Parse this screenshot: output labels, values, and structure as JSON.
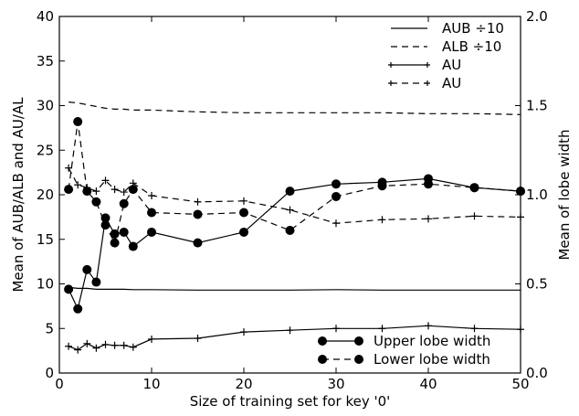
{
  "chart_data": {
    "type": "line",
    "xlabel": "Size of training set for key '0'",
    "ylabel": "Mean of AUB/ALB and AU/AL",
    "ylabel_right": "Mean of lobe width",
    "xlim": [
      0,
      50
    ],
    "ylim": [
      0,
      40
    ],
    "ylim_right": [
      0,
      2.0
    ],
    "x_ticks": [
      "0",
      "10",
      "20",
      "30",
      "40",
      "50"
    ],
    "y_ticks": [
      "0",
      "5",
      "10",
      "15",
      "20",
      "25",
      "30",
      "35",
      "40"
    ],
    "y_ticks_right": [
      "0.0",
      "0.5",
      "1.0",
      "1.5",
      "2.0"
    ],
    "grid": false,
    "legend_top": {
      "placement": "top-right",
      "entries": [
        "AUB ÷10",
        "ALB ÷10",
        "AU",
        "AU"
      ]
    },
    "legend_bottom": {
      "placement": "bottom-right",
      "entries": [
        "Upper lobe width",
        "Lower lobe width"
      ]
    },
    "series": [
      {
        "style": "solid",
        "axis": "left",
        "x": [
          1,
          2,
          3,
          4,
          5,
          6,
          7,
          8,
          10,
          15,
          20,
          25,
          30,
          35,
          40,
          45,
          50
        ],
        "values": [
          9.6,
          9.5,
          9.5,
          9.4,
          9.4,
          9.4,
          9.4,
          9.35,
          9.35,
          9.3,
          9.3,
          9.3,
          9.35,
          9.3,
          9.3,
          9.3,
          9.3
        ]
      },
      {
        "style": "dashed",
        "axis": "left",
        "x": [
          1,
          2,
          3,
          4,
          5,
          6,
          7,
          8,
          10,
          15,
          20,
          25,
          30,
          35,
          40,
          45,
          50
        ],
        "values": [
          30.4,
          30.3,
          30.1,
          29.9,
          29.7,
          29.6,
          29.6,
          29.5,
          29.5,
          29.3,
          29.2,
          29.2,
          29.2,
          29.2,
          29.1,
          29.1,
          29.0
        ]
      },
      {
        "style": "solid-plus",
        "axis": "left",
        "x": [
          1,
          2,
          3,
          4,
          5,
          6,
          7,
          8,
          10,
          15,
          20,
          25,
          30,
          35,
          40,
          45,
          50
        ],
        "values": [
          3.0,
          2.6,
          3.3,
          2.8,
          3.2,
          3.1,
          3.1,
          2.9,
          3.8,
          3.9,
          4.6,
          4.8,
          5.0,
          5.0,
          5.3,
          5.0,
          4.9
        ]
      },
      {
        "style": "dashed-plus",
        "axis": "left",
        "x": [
          1,
          2,
          3,
          4,
          5,
          6,
          7,
          8,
          10,
          15,
          20,
          25,
          30,
          35,
          40,
          45,
          50
        ],
        "values": [
          23.0,
          21.1,
          20.8,
          20.4,
          21.6,
          20.6,
          20.3,
          21.3,
          19.9,
          19.2,
          19.3,
          18.3,
          16.8,
          17.2,
          17.3,
          17.6,
          17.5
        ]
      },
      {
        "name": "Upper lobe width",
        "style": "solid-circle",
        "axis": "right",
        "x": [
          1,
          2,
          3,
          4,
          5,
          6,
          7,
          8,
          10,
          15,
          20,
          25,
          30,
          35,
          40,
          45,
          50
        ],
        "values": [
          0.47,
          0.36,
          0.58,
          0.51,
          0.87,
          0.78,
          0.79,
          0.71,
          0.79,
          0.73,
          0.79,
          1.02,
          1.06,
          1.07,
          1.09,
          1.04,
          1.02
        ]
      },
      {
        "name": "Lower lobe width",
        "style": "dashed-circle",
        "axis": "right",
        "x": [
          1,
          2,
          3,
          4,
          5,
          6,
          7,
          8,
          10,
          15,
          20,
          25,
          30,
          35,
          40,
          45,
          50
        ],
        "values": [
          1.03,
          1.41,
          1.02,
          0.96,
          0.83,
          0.73,
          0.95,
          1.03,
          0.9,
          0.89,
          0.9,
          0.8,
          0.99,
          1.05,
          1.06,
          1.04,
          1.02
        ]
      }
    ]
  }
}
